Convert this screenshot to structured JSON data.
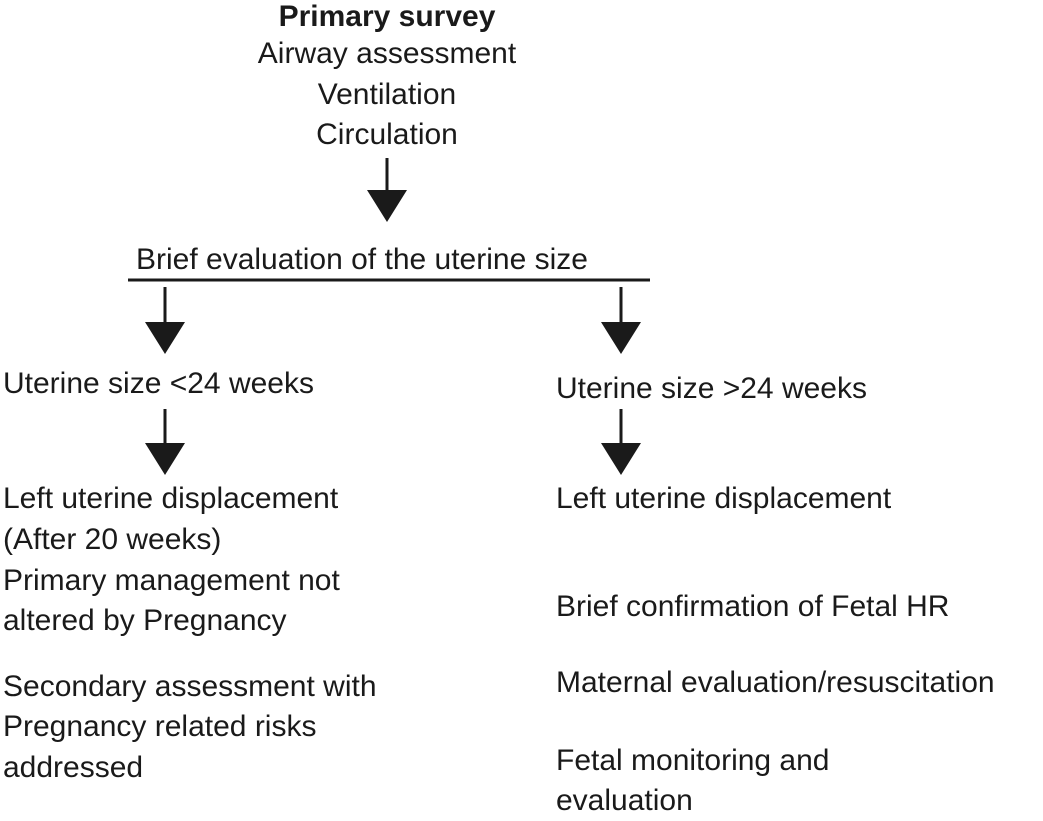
{
  "top": {
    "title": "Primary survey",
    "lines": [
      "Airway assessment",
      "Ventilation",
      "Circulation"
    ]
  },
  "evaluation": "Brief evaluation of the uterine size",
  "left": {
    "condition": "Uterine size <24 weeks",
    "steps": [
      "Left uterine displacement",
      "(After 20 weeks)",
      "Primary management not",
      "altered by Pregnancy",
      "Secondary assessment with",
      "Pregnancy related risks",
      "addressed"
    ]
  },
  "right": {
    "condition": "Uterine size >24 weeks",
    "steps": [
      "Left uterine displacement",
      "Brief confirmation of Fetal HR",
      "Maternal evaluation/resuscitation",
      "Fetal monitoring and",
      "evaluation"
    ]
  },
  "colors": {
    "ink": "#1a1a1a",
    "background": "#ffffff"
  }
}
